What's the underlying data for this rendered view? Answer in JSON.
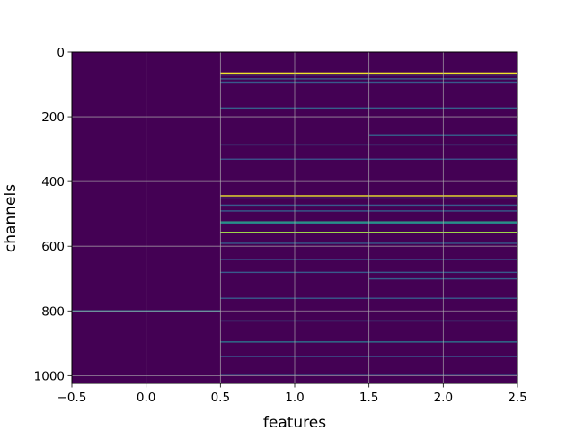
{
  "chart_data": {
    "type": "heatmap",
    "title": "",
    "xlabel": "features",
    "ylabel": "channels",
    "xlim": [
      -0.5,
      2.5
    ],
    "ylim": [
      1024,
      0
    ],
    "y_inverted": true,
    "columns": [
      0,
      1,
      2
    ],
    "n_channels": 1024,
    "x_ticks": [
      -0.5,
      0.0,
      0.5,
      1.0,
      1.5,
      2.0,
      2.5
    ],
    "x_tick_labels": [
      "−0.5",
      "0.0",
      "0.5",
      "1.0",
      "1.5",
      "2.0",
      "2.5"
    ],
    "y_ticks": [
      0,
      200,
      400,
      600,
      800,
      1000
    ],
    "y_tick_labels": [
      "0",
      "200",
      "400",
      "600",
      "800",
      "1000"
    ],
    "grid": true,
    "colormap": "viridis",
    "colors": {
      "background_low": "#440154",
      "high": "#fde725",
      "mid": "#21918c"
    },
    "bright_rows": [
      {
        "channel": 64,
        "columns": [
          1,
          2
        ],
        "value": 0.98
      },
      {
        "channel": 70,
        "columns": [
          1,
          2
        ],
        "value": 0.35
      },
      {
        "channel": 82,
        "columns": [
          1,
          2
        ],
        "value": 0.3
      },
      {
        "channel": 92,
        "columns": [
          1,
          2
        ],
        "value": 0.28
      },
      {
        "channel": 172,
        "columns": [
          1,
          2
        ],
        "value": 0.3
      },
      {
        "channel": 255,
        "columns": [
          2
        ],
        "value": 0.3
      },
      {
        "channel": 286,
        "columns": [
          1,
          2
        ],
        "value": 0.3
      },
      {
        "channel": 330,
        "columns": [
          1,
          2
        ],
        "value": 0.25
      },
      {
        "channel": 443,
        "columns": [
          1,
          2
        ],
        "value": 0.97
      },
      {
        "channel": 450,
        "columns": [
          1,
          2
        ],
        "value": 0.25
      },
      {
        "channel": 472,
        "columns": [
          1,
          2
        ],
        "value": 0.28
      },
      {
        "channel": 490,
        "columns": [
          1,
          2
        ],
        "value": 0.3
      },
      {
        "channel": 524,
        "columns": [
          1,
          2
        ],
        "value": 0.55
      },
      {
        "channel": 527,
        "columns": [
          1,
          2
        ],
        "value": 0.45
      },
      {
        "channel": 556,
        "columns": [
          1,
          2
        ],
        "value": 0.85
      },
      {
        "channel": 590,
        "columns": [
          1,
          2
        ],
        "value": 0.28
      },
      {
        "channel": 640,
        "columns": [
          1,
          2
        ],
        "value": 0.25
      },
      {
        "channel": 680,
        "columns": [
          1,
          2
        ],
        "value": 0.28
      },
      {
        "channel": 700,
        "columns": [
          2
        ],
        "value": 0.3
      },
      {
        "channel": 760,
        "columns": [
          1,
          2
        ],
        "value": 0.28
      },
      {
        "channel": 799,
        "columns": [
          0
        ],
        "value": 0.4
      },
      {
        "channel": 830,
        "columns": [
          1,
          2
        ],
        "value": 0.3
      },
      {
        "channel": 895,
        "columns": [
          1,
          2
        ],
        "value": 0.38
      },
      {
        "channel": 940,
        "columns": [
          1,
          2
        ],
        "value": 0.25
      },
      {
        "channel": 995,
        "columns": [
          1,
          2
        ],
        "value": 0.28
      }
    ]
  }
}
